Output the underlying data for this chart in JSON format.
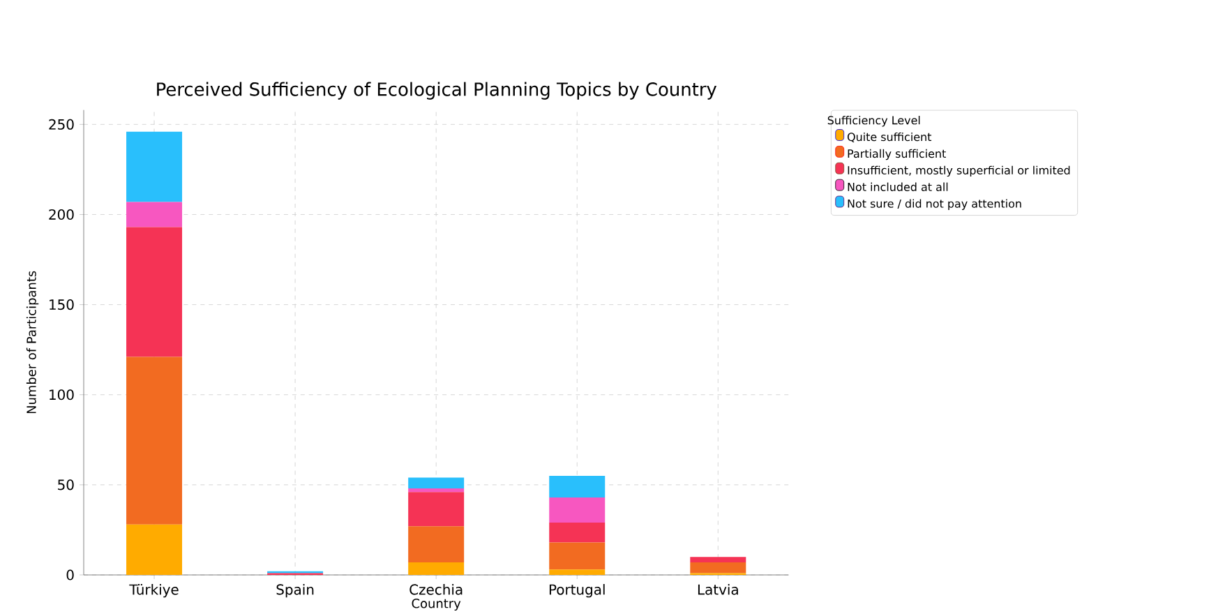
{
  "chart_data": {
    "type": "bar",
    "stacked": true,
    "title": "Perceived Sufficiency of Ecological Planning Topics by Country",
    "xlabel": "Country",
    "ylabel": "Number of Participants",
    "legend_title": "Sufficiency Level",
    "categories": [
      "Türkiye",
      "Spain",
      "Czechia",
      "Portugal",
      "Latvia"
    ],
    "series": [
      {
        "name": "Quite sufficient",
        "color": "#ffab00",
        "values": [
          28,
          0,
          7,
          3,
          1
        ]
      },
      {
        "name": "Partially sufficient",
        "color": "#f26b21",
        "values": [
          93,
          0,
          20,
          15,
          6
        ]
      },
      {
        "name": "Insufficient, mostly superficial or limited",
        "color": "#f53355",
        "values": [
          72,
          1,
          19,
          11,
          3
        ]
      },
      {
        "name": "Not included at all",
        "color": "#f757c0",
        "values": [
          14,
          0,
          2,
          14,
          0
        ]
      },
      {
        "name": "Not sure / did not pay attention",
        "color": "#29bffc",
        "values": [
          39,
          1,
          6,
          12,
          0
        ]
      }
    ],
    "ylim": [
      0,
      258
    ],
    "yticks": [
      0,
      50,
      100,
      150,
      200,
      250
    ],
    "grid": true,
    "legend": "top right"
  }
}
